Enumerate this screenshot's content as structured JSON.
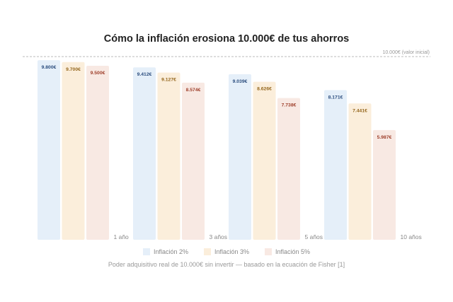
{
  "chart_data": {
    "type": "bar",
    "title": "Cómo la inflación erosiona 10.000€ de tus ahorros",
    "categories": [
      "1 año",
      "3 años",
      "5 años",
      "10 años"
    ],
    "series": [
      {
        "name": "Inflación 2%",
        "values": [
          9800,
          9412,
          9039,
          8171
        ],
        "labels": [
          "9.800€",
          "9.412€",
          "9.039€",
          "8.171€"
        ],
        "color": "#e5eff9",
        "label_color": "#2b4d7e"
      },
      {
        "name": "Inflación 3%",
        "values": [
          9700,
          9127,
          8626,
          7441
        ],
        "labels": [
          "9.700€",
          "9.127€",
          "8.626€",
          "7.441€"
        ],
        "color": "#fbeedb",
        "label_color": "#94661c"
      },
      {
        "name": "Inflación 5%",
        "values": [
          9500,
          8574,
          7738,
          5987
        ],
        "labels": [
          "9.500€",
          "8.574€",
          "7.738€",
          "5.987€"
        ],
        "color": "#f8e9e3",
        "label_color": "#9e3f2b"
      }
    ],
    "reference_line": {
      "value": 10000,
      "label": "10.000€ (valor inicial)"
    },
    "ylim": [
      0,
      10000
    ],
    "grid": false,
    "legend_position": "bottom",
    "caption": "Poder adquisitivo real de 10.000€ sin invertir — basado en la ecuación de Fisher [1]"
  }
}
